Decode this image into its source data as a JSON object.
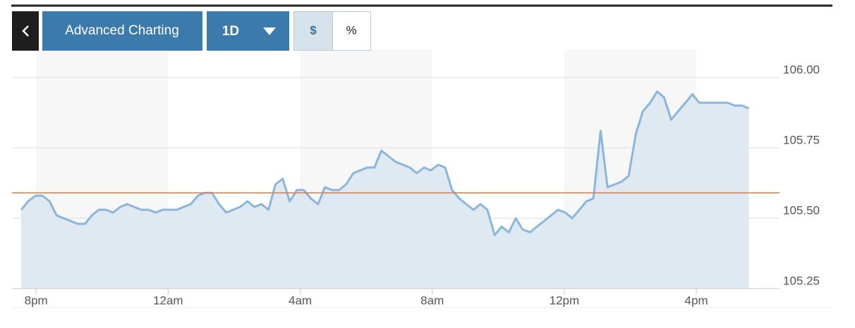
{
  "toolbar": {
    "title": "Advanced Charting",
    "range": "1D",
    "units": [
      "$",
      "%"
    ]
  },
  "chart_data": {
    "type": "area",
    "x": [
      19.55,
      19.76,
      19.98,
      20.19,
      20.41,
      20.62,
      20.83,
      21.05,
      21.26,
      21.48,
      21.69,
      21.9,
      22.12,
      22.33,
      22.55,
      22.76,
      22.97,
      23.19,
      23.4,
      23.62,
      23.83,
      24.04,
      24.26,
      24.47,
      24.69,
      24.9,
      25.11,
      25.33,
      25.54,
      25.76,
      25.97,
      26.18,
      26.4,
      26.61,
      26.83,
      27.04,
      27.25,
      27.47,
      27.68,
      27.9,
      28.11,
      28.32,
      28.54,
      28.75,
      28.97,
      29.18,
      29.39,
      29.61,
      29.82,
      30.04,
      30.25,
      30.46,
      30.68,
      30.89,
      31.11,
      31.32,
      31.53,
      31.75,
      31.96,
      32.18,
      32.39,
      32.6,
      32.82,
      33.03,
      33.25,
      33.46,
      33.67,
      33.89,
      34.1,
      34.32,
      34.53,
      34.74,
      34.96,
      35.17,
      35.39,
      35.6,
      35.81,
      36.03,
      36.24,
      36.46,
      36.67,
      36.88,
      37.1,
      37.31,
      37.53,
      37.74,
      37.95,
      38.17,
      38.38,
      38.6,
      38.81,
      39.02,
      39.24,
      39.45,
      39.67,
      39.88,
      40.09,
      40.31,
      40.52,
      40.74,
      40.95,
      41.16,
      41.38,
      41.59
    ],
    "series": [
      {
        "color": "#8ab5df",
        "fill": "#dfe9f1",
        "values": [
          105.53,
          105.56,
          105.58,
          105.58,
          105.56,
          105.51,
          105.5,
          105.49,
          105.48,
          105.48,
          105.51,
          105.53,
          105.53,
          105.52,
          105.54,
          105.55,
          105.54,
          105.53,
          105.53,
          105.52,
          105.53,
          105.53,
          105.53,
          105.54,
          105.55,
          105.58,
          105.59,
          105.59,
          105.55,
          105.52,
          105.53,
          105.54,
          105.56,
          105.54,
          105.55,
          105.53,
          105.62,
          105.64,
          105.56,
          105.6,
          105.6,
          105.57,
          105.55,
          105.61,
          105.6,
          105.6,
          105.62,
          105.66,
          105.67,
          105.68,
          105.68,
          105.74,
          105.72,
          105.7,
          105.69,
          105.68,
          105.66,
          105.68,
          105.67,
          105.69,
          105.68,
          105.6,
          105.57,
          105.55,
          105.53,
          105.55,
          105.53,
          105.44,
          105.47,
          105.45,
          105.5,
          105.46,
          105.45,
          105.47,
          105.49,
          105.51,
          105.53,
          105.52,
          105.5,
          105.53,
          105.56,
          105.57,
          105.81,
          105.61,
          105.62,
          105.63,
          105.65,
          105.8,
          105.88,
          105.91,
          105.95,
          105.93,
          105.85,
          105.88,
          105.91,
          105.94,
          105.91,
          105.91,
          105.91,
          105.91,
          105.91,
          105.9,
          105.9,
          105.89
        ]
      }
    ],
    "reference_line": 105.59,
    "reference_color": "#e07b39",
    "xlim": [
      19.27,
      42.52
    ],
    "xticks": [
      {
        "value": 20,
        "label": "8pm"
      },
      {
        "value": 24,
        "label": "12am"
      },
      {
        "value": 28,
        "label": "4am"
      },
      {
        "value": 32,
        "label": "8am"
      },
      {
        "value": 36,
        "label": "12pm"
      },
      {
        "value": 40,
        "label": "4pm"
      }
    ],
    "ylim": [
      105.25,
      106.0
    ],
    "yticks": [
      105.25,
      {
        "value": 105.5,
        "label": "105.50"
      },
      105.75,
      {
        "value": 106,
        "label": "106.00"
      }
    ],
    "grid": true
  }
}
